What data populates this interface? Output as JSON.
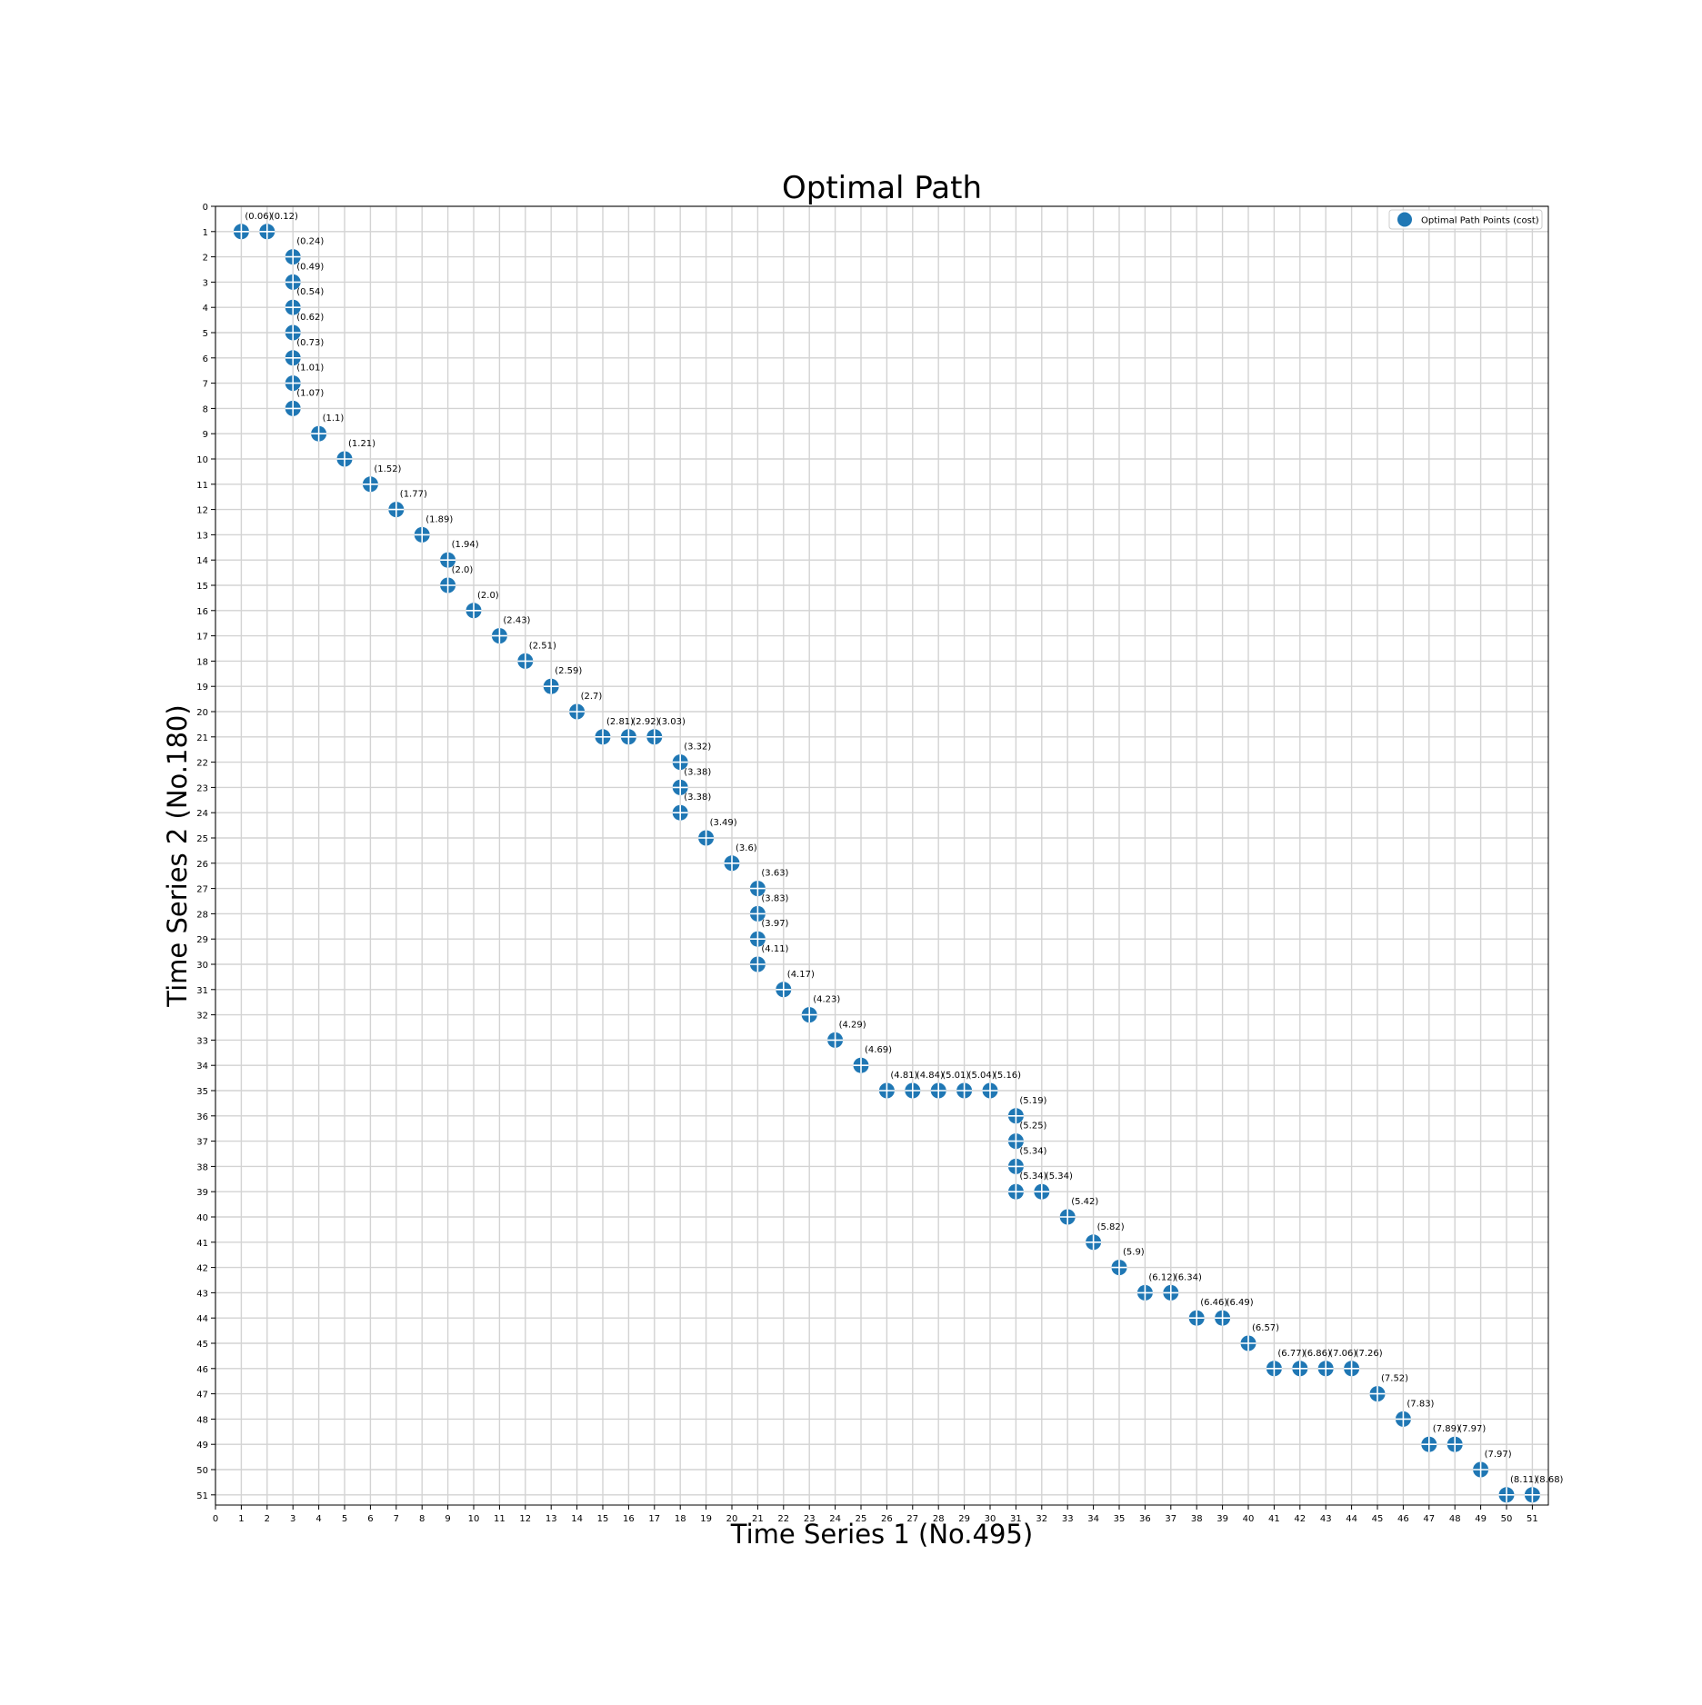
{
  "chart_data": {
    "type": "scatter",
    "title": "Optimal Path",
    "xlabel": "Time Series 1 (No.495)",
    "ylabel": "Time Series 2 (No.180)",
    "xlim": [
      0,
      51
    ],
    "ylim": [
      51,
      0
    ],
    "y_inverted": true,
    "grid": true,
    "legend_position": "top-right",
    "series": [
      {
        "name": "Optimal Path Points (cost)",
        "color": "#1f77b4",
        "points": [
          {
            "x": 1,
            "y": 1,
            "label": "(0.06)"
          },
          {
            "x": 2,
            "y": 1,
            "label": "(0.12)"
          },
          {
            "x": 3,
            "y": 2,
            "label": "(0.24)"
          },
          {
            "x": 3,
            "y": 3,
            "label": "(0.49)"
          },
          {
            "x": 3,
            "y": 4,
            "label": "(0.54)"
          },
          {
            "x": 3,
            "y": 5,
            "label": "(0.62)"
          },
          {
            "x": 3,
            "y": 6,
            "label": "(0.73)"
          },
          {
            "x": 3,
            "y": 7,
            "label": "(1.01)"
          },
          {
            "x": 3,
            "y": 8,
            "label": "(1.07)"
          },
          {
            "x": 4,
            "y": 9,
            "label": "(1.1)"
          },
          {
            "x": 5,
            "y": 10,
            "label": "(1.21)"
          },
          {
            "x": 6,
            "y": 11,
            "label": "(1.52)"
          },
          {
            "x": 7,
            "y": 12,
            "label": "(1.77)"
          },
          {
            "x": 8,
            "y": 13,
            "label": "(1.89)"
          },
          {
            "x": 9,
            "y": 14,
            "label": "(1.94)"
          },
          {
            "x": 9,
            "y": 15,
            "label": "(2.0)"
          },
          {
            "x": 10,
            "y": 16,
            "label": "(2.0)"
          },
          {
            "x": 11,
            "y": 17,
            "label": "(2.43)"
          },
          {
            "x": 12,
            "y": 18,
            "label": "(2.51)"
          },
          {
            "x": 13,
            "y": 19,
            "label": "(2.59)"
          },
          {
            "x": 14,
            "y": 20,
            "label": "(2.7)"
          },
          {
            "x": 15,
            "y": 21,
            "label": "(2.81)"
          },
          {
            "x": 16,
            "y": 21,
            "label": "(2.92)"
          },
          {
            "x": 17,
            "y": 21,
            "label": "(3.03)"
          },
          {
            "x": 18,
            "y": 22,
            "label": "(3.32)"
          },
          {
            "x": 18,
            "y": 23,
            "label": "(3.38)"
          },
          {
            "x": 18,
            "y": 24,
            "label": "(3.38)"
          },
          {
            "x": 19,
            "y": 25,
            "label": "(3.49)"
          },
          {
            "x": 20,
            "y": 26,
            "label": "(3.6)"
          },
          {
            "x": 21,
            "y": 27,
            "label": "(3.63)"
          },
          {
            "x": 21,
            "y": 28,
            "label": "(3.83)"
          },
          {
            "x": 21,
            "y": 29,
            "label": "(3.97)"
          },
          {
            "x": 21,
            "y": 30,
            "label": "(4.11)"
          },
          {
            "x": 22,
            "y": 31,
            "label": "(4.17)"
          },
          {
            "x": 23,
            "y": 32,
            "label": "(4.23)"
          },
          {
            "x": 24,
            "y": 33,
            "label": "(4.29)"
          },
          {
            "x": 25,
            "y": 34,
            "label": "(4.69)"
          },
          {
            "x": 26,
            "y": 35,
            "label": "(4.81)"
          },
          {
            "x": 27,
            "y": 35,
            "label": "(4.84)"
          },
          {
            "x": 28,
            "y": 35,
            "label": "(5.01)"
          },
          {
            "x": 29,
            "y": 35,
            "label": "(5.04)"
          },
          {
            "x": 30,
            "y": 35,
            "label": "(5.16)"
          },
          {
            "x": 31,
            "y": 36,
            "label": "(5.19)"
          },
          {
            "x": 31,
            "y": 37,
            "label": "(5.25)"
          },
          {
            "x": 31,
            "y": 38,
            "label": "(5.34)"
          },
          {
            "x": 31,
            "y": 39,
            "label": "(5.34)"
          },
          {
            "x": 32,
            "y": 39,
            "label": "(5.34)"
          },
          {
            "x": 33,
            "y": 40,
            "label": "(5.42)"
          },
          {
            "x": 34,
            "y": 41,
            "label": "(5.82)"
          },
          {
            "x": 35,
            "y": 42,
            "label": "(5.9)"
          },
          {
            "x": 36,
            "y": 43,
            "label": "(6.12)"
          },
          {
            "x": 37,
            "y": 43,
            "label": "(6.34)"
          },
          {
            "x": 38,
            "y": 44,
            "label": "(6.46)"
          },
          {
            "x": 39,
            "y": 44,
            "label": "(6.49)"
          },
          {
            "x": 40,
            "y": 45,
            "label": "(6.57)"
          },
          {
            "x": 41,
            "y": 46,
            "label": "(6.77)"
          },
          {
            "x": 42,
            "y": 46,
            "label": "(6.86)"
          },
          {
            "x": 43,
            "y": 46,
            "label": "(7.06)"
          },
          {
            "x": 44,
            "y": 46,
            "label": "(7.26)"
          },
          {
            "x": 45,
            "y": 47,
            "label": "(7.52)"
          },
          {
            "x": 46,
            "y": 48,
            "label": "(7.83)"
          },
          {
            "x": 47,
            "y": 49,
            "label": "(7.89)"
          },
          {
            "x": 48,
            "y": 49,
            "label": "(7.97)"
          },
          {
            "x": 49,
            "y": 50,
            "label": "(7.97)"
          },
          {
            "x": 50,
            "y": 51,
            "label": "(8.11)"
          },
          {
            "x": 51,
            "y": 51,
            "label": "(8.68)"
          }
        ]
      }
    ]
  }
}
